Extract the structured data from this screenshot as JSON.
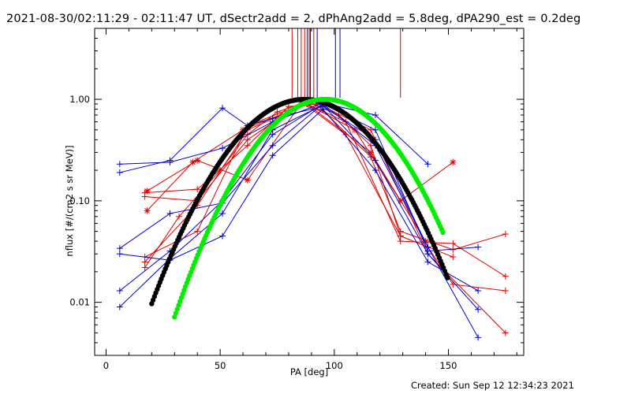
{
  "header": {
    "title": "2021-08-30/02:11:29 - 02:11:47 UT, dSectr2add = 2, dPhAng2add = 5.8deg, dPA290_est =  0.2deg"
  },
  "footer": {
    "created": "Created: Sun Sep 12 12:34:23 2021"
  },
  "colors": {
    "red": "#dd0000",
    "blue": "#0000cc",
    "black": "#000000",
    "green": "#00ee00",
    "axis": "#000000"
  },
  "chart_data": {
    "type": "line",
    "xlabel": "PA [deg]",
    "ylabel": "nflux [#/(cm2 s sr MeV)]",
    "xlim": [
      -5,
      183
    ],
    "ylim": [
      0.003,
      5
    ],
    "yscale": "log",
    "grid": false,
    "x_ticks": [
      0,
      50,
      100,
      150
    ],
    "x_tick_labels": [
      "0",
      "50",
      "100",
      "150"
    ],
    "y_ticks": [
      0.01,
      0.1,
      1
    ],
    "y_tick_labels": [
      "0.01",
      "0.10",
      "1.00"
    ],
    "vertical_markers": {
      "red": [
        81.5,
        84,
        85.5,
        87,
        89,
        91,
        129
      ],
      "blue": [
        88.2,
        89.5,
        92.5,
        100.5,
        102.5
      ]
    },
    "fits": [
      {
        "color": "black",
        "center": 87,
        "sigma": 22,
        "x_range": [
          20,
          150
        ]
      },
      {
        "color": "green",
        "center": 96,
        "sigma": 21,
        "x_range": [
          30,
          148
        ]
      }
    ],
    "series": [
      {
        "color": "red",
        "marker": "plus",
        "points": [
          [
            17,
            0.022
          ],
          [
            32,
            0.07
          ],
          [
            50,
            0.2
          ],
          [
            62,
            0.45
          ],
          [
            75,
            0.75
          ],
          [
            88,
            0.95
          ],
          [
            102,
            0.7
          ],
          [
            116,
            0.35
          ],
          [
            129,
            0.045
          ],
          [
            141,
            0.035
          ],
          [
            152,
            0.015
          ],
          [
            175,
            0.013
          ]
        ]
      },
      {
        "color": "red",
        "marker": "plus",
        "points": [
          [
            17,
            0.025
          ],
          [
            40,
            0.09
          ],
          [
            62,
            0.5
          ],
          [
            88,
            0.9
          ],
          [
            105,
            0.6
          ],
          [
            129,
            0.04
          ],
          [
            152,
            0.038
          ],
          [
            175,
            0.018
          ]
        ]
      },
      {
        "color": "red",
        "marker": "plus",
        "points": [
          [
            17,
            0.12
          ],
          [
            40,
            0.13
          ],
          [
            62,
            0.35
          ],
          [
            80,
            0.85
          ],
          [
            92,
            0.9
          ],
          [
            116,
            0.27
          ],
          [
            129,
            0.05
          ],
          [
            152,
            0.033
          ],
          [
            175,
            0.047
          ]
        ]
      },
      {
        "color": "red",
        "marker": "plus",
        "points": [
          [
            17,
            0.028
          ],
          [
            40,
            0.05
          ],
          [
            62,
            0.55
          ],
          [
            90,
            0.97
          ],
          [
            116,
            0.5
          ],
          [
            141,
            0.03
          ],
          [
            175,
            0.005
          ]
        ]
      },
      {
        "color": "red",
        "marker": "plus",
        "points": [
          [
            17,
            0.11
          ],
          [
            40,
            0.1
          ],
          [
            62,
            0.4
          ],
          [
            86,
            0.93
          ],
          [
            105,
            0.45
          ],
          [
            129,
            0.045
          ],
          [
            152,
            0.028
          ]
        ]
      },
      {
        "color": "red",
        "marker": "asterisk",
        "points": [
          [
            18,
            0.125
          ],
          [
            40,
            0.25
          ],
          [
            62,
            0.16
          ],
          [
            86,
            0.95
          ],
          [
            109,
            0.5
          ],
          [
            129,
            0.1
          ],
          [
            152,
            0.24
          ]
        ]
      },
      {
        "color": "red",
        "marker": "asterisk",
        "points": [
          [
            18,
            0.08
          ],
          [
            38,
            0.24
          ],
          [
            60,
            0.5
          ],
          [
            88,
            0.9
          ],
          [
            116,
            0.3
          ],
          [
            140,
            0.04
          ]
        ]
      },
      {
        "color": "blue",
        "marker": "plus",
        "points": [
          [
            6,
            0.23
          ],
          [
            28,
            0.24
          ],
          [
            51,
            0.33
          ],
          [
            73,
            0.6
          ],
          [
            95,
            0.92
          ],
          [
            118,
            0.7
          ],
          [
            141,
            0.23
          ]
        ]
      },
      {
        "color": "blue",
        "marker": "plus",
        "points": [
          [
            6,
            0.19
          ],
          [
            28,
            0.25
          ],
          [
            51,
            0.82
          ],
          [
            62,
            0.55
          ],
          [
            73,
            0.65
          ],
          [
            95,
            0.85
          ],
          [
            118,
            0.4
          ],
          [
            141,
            0.035
          ]
        ]
      },
      {
        "color": "blue",
        "marker": "plus",
        "points": [
          [
            6,
            0.034
          ],
          [
            28,
            0.075
          ],
          [
            51,
            0.095
          ],
          [
            73,
            0.35
          ],
          [
            95,
            0.9
          ],
          [
            118,
            0.5
          ],
          [
            141,
            0.032
          ],
          [
            163,
            0.035
          ]
        ]
      },
      {
        "color": "blue",
        "marker": "plus",
        "points": [
          [
            6,
            0.03
          ],
          [
            28,
            0.026
          ],
          [
            51,
            0.045
          ],
          [
            73,
            0.28
          ],
          [
            95,
            0.8
          ],
          [
            118,
            0.2
          ],
          [
            141,
            0.025
          ],
          [
            163,
            0.013
          ]
        ]
      },
      {
        "color": "blue",
        "marker": "plus",
        "points": [
          [
            6,
            0.013
          ],
          [
            28,
            0.032
          ],
          [
            51,
            0.1
          ],
          [
            73,
            0.45
          ],
          [
            95,
            0.9
          ],
          [
            118,
            0.35
          ],
          [
            141,
            0.035
          ],
          [
            163,
            0.0045
          ]
        ]
      },
      {
        "color": "blue",
        "marker": "plus",
        "points": [
          [
            6,
            0.009
          ],
          [
            28,
            0.027
          ],
          [
            51,
            0.075
          ],
          [
            73,
            0.5
          ],
          [
            95,
            0.88
          ],
          [
            118,
            0.25
          ],
          [
            141,
            0.03
          ],
          [
            163,
            0.0085
          ]
        ]
      }
    ]
  }
}
